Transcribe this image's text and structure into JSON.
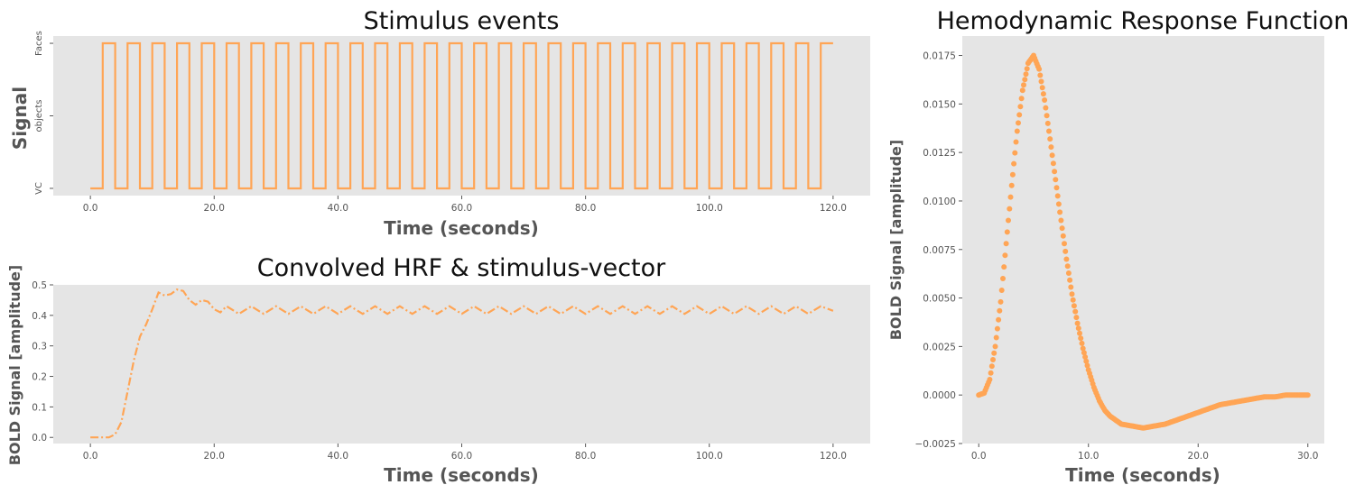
{
  "colors": {
    "series": "#ffa555",
    "panel": "#e5e5e5",
    "text": "#555555",
    "title": "#111111"
  },
  "chart_data": [
    {
      "id": "stimulus",
      "type": "line",
      "title": "Stimulus events",
      "xlabel": "Time (seconds)",
      "ylabel": "Signal",
      "xlim": [
        -6,
        126
      ],
      "ylim": [
        -0.1,
        2.1
      ],
      "xticks": [
        0,
        20,
        40,
        60,
        80,
        100,
        120
      ],
      "xtick_labels": [
        "0.0",
        "20.0",
        "40.0",
        "60.0",
        "80.0",
        "100.0",
        "120.0"
      ],
      "yticks": [
        0,
        1,
        2
      ],
      "ytick_labels": [
        "VC",
        "objects",
        "Faces"
      ],
      "grid": false,
      "step": {
        "start": 0,
        "end": 120,
        "first_on": 2,
        "period": 4,
        "on_duration": 2,
        "low": 0,
        "high": 2
      }
    },
    {
      "id": "convolved",
      "type": "line",
      "line_style": "dashdot",
      "title": "Convolved HRF & stimulus-vector",
      "xlabel": "Time (seconds)",
      "ylabel": "BOLD Signal [amplitude]",
      "xlim": [
        -6,
        126
      ],
      "ylim": [
        -0.02,
        0.5
      ],
      "xticks": [
        0,
        20,
        40,
        60,
        80,
        100,
        120
      ],
      "xtick_labels": [
        "0.0",
        "20.0",
        "40.0",
        "60.0",
        "80.0",
        "100.0",
        "120.0"
      ],
      "yticks": [
        0.0,
        0.1,
        0.2,
        0.3,
        0.4,
        0.5
      ],
      "ytick_labels": [
        "0.0",
        "0.1",
        "0.2",
        "0.3",
        "0.4",
        "0.5"
      ],
      "grid": false,
      "x": [
        0,
        2,
        3,
        4,
        5,
        6,
        7,
        8,
        9,
        10,
        11,
        12,
        13,
        14,
        15,
        16,
        17,
        18,
        19,
        20,
        21,
        22,
        24,
        26,
        28,
        30,
        32,
        34,
        36,
        38,
        40,
        42,
        44,
        46,
        48,
        50,
        52,
        54,
        56,
        58,
        60,
        62,
        64,
        66,
        68,
        70,
        72,
        74,
        76,
        78,
        80,
        82,
        84,
        86,
        88,
        90,
        92,
        94,
        96,
        98,
        100,
        102,
        104,
        106,
        108,
        110,
        112,
        114,
        116,
        118,
        120
      ],
      "y": [
        0.0,
        0.0,
        0.0,
        0.01,
        0.05,
        0.15,
        0.25,
        0.33,
        0.37,
        0.42,
        0.475,
        0.465,
        0.47,
        0.485,
        0.48,
        0.45,
        0.435,
        0.45,
        0.445,
        0.42,
        0.41,
        0.43,
        0.405,
        0.43,
        0.405,
        0.43,
        0.405,
        0.43,
        0.405,
        0.43,
        0.405,
        0.43,
        0.405,
        0.43,
        0.405,
        0.43,
        0.405,
        0.43,
        0.405,
        0.43,
        0.405,
        0.43,
        0.405,
        0.43,
        0.405,
        0.43,
        0.405,
        0.43,
        0.405,
        0.43,
        0.405,
        0.43,
        0.405,
        0.43,
        0.405,
        0.43,
        0.405,
        0.43,
        0.405,
        0.43,
        0.405,
        0.43,
        0.405,
        0.43,
        0.405,
        0.43,
        0.405,
        0.43,
        0.405,
        0.43,
        0.415
      ]
    },
    {
      "id": "hrf",
      "type": "scatter",
      "title": "Hemodynamic Response Function",
      "xlabel": "Time (seconds)",
      "ylabel": "BOLD Signal [amplitude]",
      "xlim": [
        -1.5,
        31.5
      ],
      "ylim": [
        -0.0025,
        0.0185
      ],
      "xticks": [
        0,
        10,
        20,
        30
      ],
      "xtick_labels": [
        "0.0",
        "10.0",
        "20.0",
        "30.0"
      ],
      "yticks": [
        -0.0025,
        0.0,
        0.0025,
        0.005,
        0.0075,
        0.01,
        0.0125,
        0.015,
        0.0175
      ],
      "ytick_labels": [
        "−0.0025",
        "0.0000",
        "0.0025",
        "0.0050",
        "0.0075",
        "0.0100",
        "0.0125",
        "0.0150",
        "0.0175"
      ],
      "grid": false,
      "x_points": {
        "start": 0,
        "end": 30,
        "step": 0.1
      },
      "curve": {
        "x": [
          0,
          0.5,
          1,
          1.5,
          2,
          2.5,
          3,
          3.5,
          4,
          4.5,
          5,
          5.5,
          6,
          6.5,
          7,
          7.5,
          8,
          8.5,
          9,
          9.5,
          10,
          10.5,
          11,
          11.5,
          12,
          12.5,
          13,
          14,
          15,
          16,
          17,
          18,
          19,
          20,
          21,
          22,
          23,
          24,
          25,
          26,
          27,
          28,
          29,
          30
        ],
        "y": [
          0.0,
          0.0001,
          0.0008,
          0.0025,
          0.0048,
          0.0078,
          0.0108,
          0.0136,
          0.0157,
          0.0171,
          0.0175,
          0.0168,
          0.0152,
          0.0132,
          0.0111,
          0.009,
          0.007,
          0.0052,
          0.0037,
          0.0024,
          0.0013,
          0.0004,
          -0.0003,
          -0.0008,
          -0.0011,
          -0.0013,
          -0.0015,
          -0.0016,
          -0.0017,
          -0.0016,
          -0.0015,
          -0.0013,
          -0.0011,
          -0.0009,
          -0.0007,
          -0.0005,
          -0.0004,
          -0.0003,
          -0.0002,
          -0.0001,
          -0.0001,
          0.0,
          0.0,
          0.0
        ]
      }
    }
  ]
}
